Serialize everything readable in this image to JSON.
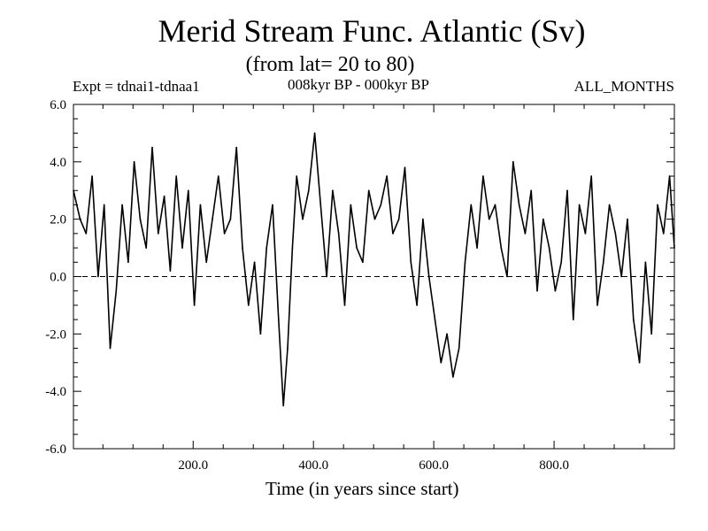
{
  "header": {
    "title": "Merid Stream Func. Atlantic (Sv)",
    "subtitle": "(from lat= 20 to 80)",
    "experiment": "Expt = tdnai1-tdnaa1",
    "period": "008kyr BP - 000kyr BP",
    "months": "ALL_MONTHS"
  },
  "chart_data": {
    "type": "line",
    "title": "Merid Stream Func. Atlantic (Sv)",
    "subtitle": "(from lat= 20 to 80)",
    "xlabel": "Time (in years since start)",
    "ylabel": "",
    "xlim": [
      1,
      1000
    ],
    "ylim": [
      -6.0,
      6.0
    ],
    "x_ticks": [
      200,
      400,
      600,
      800
    ],
    "x_tick_labels": [
      "200.0",
      "400.0",
      "600.0",
      "800.0"
    ],
    "y_ticks": [
      -6,
      -4,
      -2,
      0,
      2,
      4,
      6
    ],
    "y_tick_labels": [
      "-6.0",
      "-4.0",
      "-2.0",
      "0.0",
      "2.0",
      "4.0",
      "6.0"
    ],
    "zero_line": "dashed",
    "series": [
      {
        "name": "Merid Stream Func. Atlantic",
        "x": [
          1,
          12,
          22,
          32,
          42,
          52,
          62,
          72,
          82,
          92,
          102,
          112,
          122,
          132,
          142,
          152,
          162,
          172,
          182,
          192,
          202,
          212,
          222,
          232,
          242,
          252,
          262,
          272,
          282,
          292,
          302,
          312,
          322,
          332,
          342,
          350,
          357,
          365,
          372,
          382,
          392,
          402,
          412,
          422,
          432,
          442,
          452,
          462,
          472,
          482,
          492,
          502,
          512,
          522,
          532,
          542,
          552,
          562,
          572,
          582,
          592,
          602,
          612,
          622,
          632,
          642,
          652,
          662,
          672,
          682,
          692,
          702,
          712,
          722,
          732,
          742,
          752,
          762,
          772,
          782,
          792,
          802,
          812,
          822,
          832,
          842,
          852,
          862,
          872,
          882,
          892,
          902,
          912,
          922,
          932,
          942,
          952,
          962,
          972,
          982,
          992,
          1000
        ],
        "y": [
          3.0,
          2.0,
          1.5,
          3.5,
          0.0,
          2.5,
          -2.5,
          -0.5,
          2.5,
          0.5,
          4.0,
          2.0,
          1.0,
          4.5,
          1.5,
          2.8,
          0.2,
          3.5,
          1.0,
          3.0,
          -1.0,
          2.5,
          0.5,
          2.0,
          3.5,
          1.5,
          2.0,
          4.5,
          1.0,
          -1.0,
          0.5,
          -2.0,
          1.0,
          2.5,
          -1.5,
          -4.5,
          -2.5,
          1.0,
          3.5,
          2.0,
          3.0,
          5.0,
          2.5,
          0.0,
          3.0,
          1.5,
          -1.0,
          2.5,
          1.0,
          0.5,
          3.0,
          2.0,
          2.5,
          3.5,
          1.5,
          2.0,
          3.8,
          0.5,
          -1.0,
          2.0,
          0.0,
          -1.5,
          -3.0,
          -2.0,
          -3.5,
          -2.5,
          0.5,
          2.5,
          1.0,
          3.5,
          2.0,
          2.5,
          1.0,
          0.0,
          4.0,
          2.5,
          1.5,
          3.0,
          -0.5,
          2.0,
          1.0,
          -0.5,
          0.5,
          3.0,
          -1.5,
          2.5,
          1.5,
          3.5,
          -1.0,
          0.5,
          2.5,
          1.5,
          0.0,
          2.0,
          -1.5,
          -3.0,
          0.5,
          -2.0,
          2.5,
          1.5,
          3.5,
          1.0
        ]
      }
    ]
  }
}
